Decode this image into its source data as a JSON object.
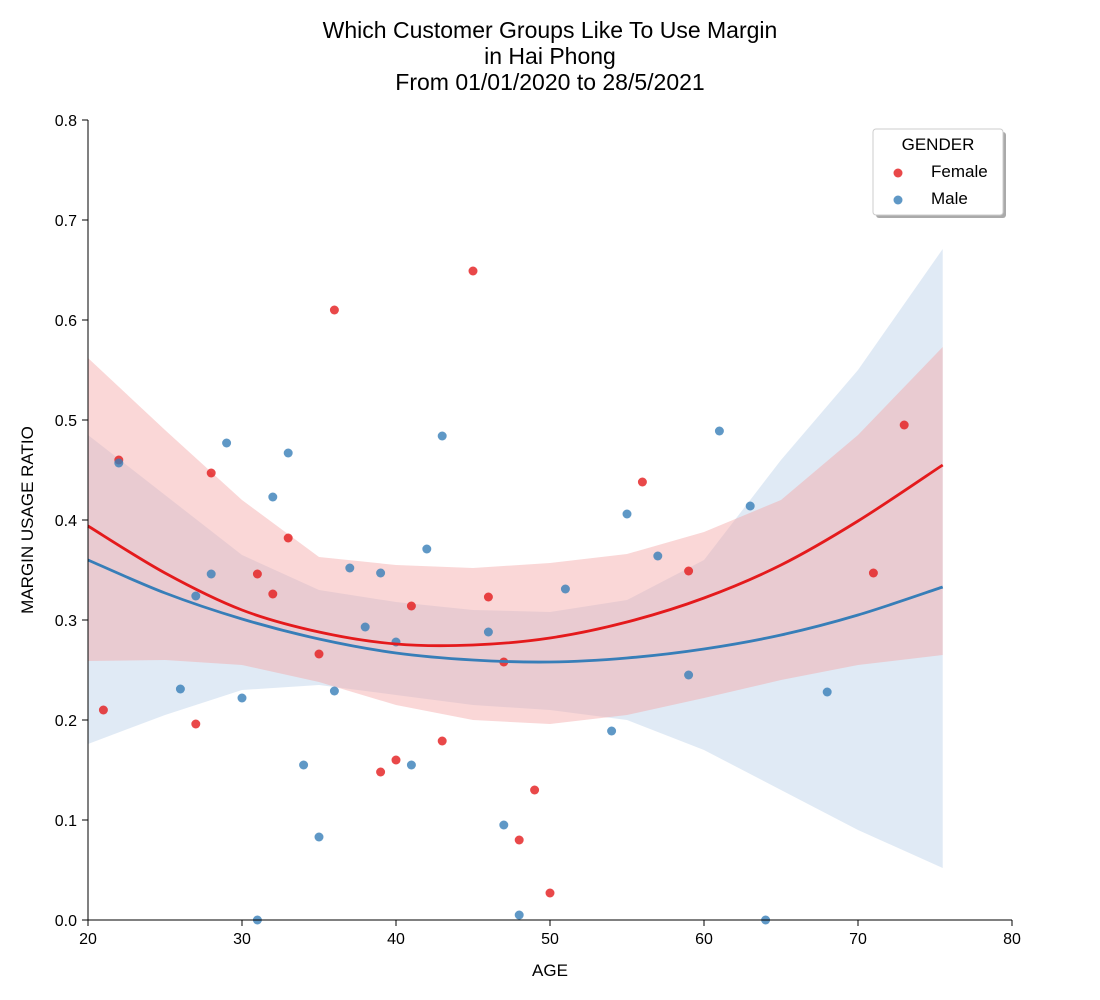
{
  "chart_data": {
    "type": "scatter",
    "title_lines": [
      "Which Customer Groups Like To Use Margin",
      "in Hai Phong",
      "From 01/01/2020 to 28/5/2021"
    ],
    "xlabel": "AGE",
    "ylabel": "MARGIN USAGE RATIO",
    "xlim": [
      20,
      80
    ],
    "ylim": [
      0,
      0.8
    ],
    "x_ticks": [
      20,
      30,
      40,
      50,
      60,
      70,
      80
    ],
    "x_tick_labels": [
      "20",
      "30",
      "40",
      "50",
      "60",
      "70",
      "80"
    ],
    "y_ticks": [
      0,
      0.1,
      0.2,
      0.3,
      0.4,
      0.5,
      0.6,
      0.7,
      0.8
    ],
    "y_tick_labels": [
      "0.0",
      "0.1",
      "0.2",
      "0.3",
      "0.4",
      "0.5",
      "0.6",
      "0.7",
      "0.8"
    ],
    "grid": false,
    "legend": {
      "title": "GENDER",
      "placement": "top-right"
    },
    "series": [
      {
        "name": "Female",
        "color": "#e41a1c",
        "band_color": "#f4a6a6",
        "points": [
          [
            21,
            0.21
          ],
          [
            22,
            0.46
          ],
          [
            27,
            0.196
          ],
          [
            28,
            0.447
          ],
          [
            31,
            0.346
          ],
          [
            32,
            0.326
          ],
          [
            33,
            0.382
          ],
          [
            35,
            0.266
          ],
          [
            36,
            0.61
          ],
          [
            39,
            0.148
          ],
          [
            40,
            0.16
          ],
          [
            41,
            0.314
          ],
          [
            43,
            0.179
          ],
          [
            45,
            0.649
          ],
          [
            46,
            0.323
          ],
          [
            47,
            0.258
          ],
          [
            48,
            0.08
          ],
          [
            49,
            0.13
          ],
          [
            50,
            0.027
          ],
          [
            56,
            0.438
          ],
          [
            59,
            0.349
          ],
          [
            71,
            0.347
          ],
          [
            73,
            0.495
          ]
        ],
        "fit": [
          [
            20,
            0.394
          ],
          [
            25,
            0.347
          ],
          [
            30,
            0.31
          ],
          [
            35,
            0.288
          ],
          [
            40,
            0.276
          ],
          [
            45,
            0.275
          ],
          [
            50,
            0.282
          ],
          [
            55,
            0.298
          ],
          [
            60,
            0.322
          ],
          [
            65,
            0.355
          ],
          [
            70,
            0.399
          ],
          [
            75.5,
            0.455
          ]
        ],
        "ci_upper": [
          [
            20,
            0.562
          ],
          [
            25,
            0.49
          ],
          [
            30,
            0.42
          ],
          [
            35,
            0.363
          ],
          [
            40,
            0.355
          ],
          [
            45,
            0.352
          ],
          [
            50,
            0.357
          ],
          [
            55,
            0.366
          ],
          [
            60,
            0.388
          ],
          [
            65,
            0.42
          ],
          [
            70,
            0.485
          ],
          [
            75.5,
            0.573
          ]
        ],
        "ci_lower": [
          [
            20,
            0.259
          ],
          [
            25,
            0.26
          ],
          [
            30,
            0.255
          ],
          [
            35,
            0.238
          ],
          [
            40,
            0.215
          ],
          [
            45,
            0.2
          ],
          [
            50,
            0.196
          ],
          [
            55,
            0.205
          ],
          [
            60,
            0.222
          ],
          [
            65,
            0.24
          ],
          [
            70,
            0.255
          ],
          [
            75.5,
            0.265
          ]
        ]
      },
      {
        "name": "Male",
        "color": "#377eb8",
        "band_color": "#c6d9ec",
        "points": [
          [
            22,
            0.457
          ],
          [
            26,
            0.231
          ],
          [
            27,
            0.324
          ],
          [
            28,
            0.346
          ],
          [
            29,
            0.477
          ],
          [
            30,
            0.222
          ],
          [
            31,
            0.0
          ],
          [
            32,
            0.423
          ],
          [
            33,
            0.467
          ],
          [
            34,
            0.155
          ],
          [
            35,
            0.083
          ],
          [
            36,
            0.229
          ],
          [
            37,
            0.352
          ],
          [
            38,
            0.293
          ],
          [
            39,
            0.347
          ],
          [
            40,
            0.278
          ],
          [
            41,
            0.155
          ],
          [
            42,
            0.371
          ],
          [
            43,
            0.484
          ],
          [
            46,
            0.288
          ],
          [
            47,
            0.095
          ],
          [
            48,
            0.005
          ],
          [
            51,
            0.331
          ],
          [
            54,
            0.189
          ],
          [
            55,
            0.406
          ],
          [
            57,
            0.364
          ],
          [
            59,
            0.245
          ],
          [
            61,
            0.489
          ],
          [
            63,
            0.414
          ],
          [
            64,
            0.0
          ],
          [
            68,
            0.228
          ]
        ],
        "fit": [
          [
            20,
            0.36
          ],
          [
            25,
            0.327
          ],
          [
            30,
            0.301
          ],
          [
            35,
            0.281
          ],
          [
            40,
            0.267
          ],
          [
            45,
            0.26
          ],
          [
            50,
            0.258
          ],
          [
            55,
            0.262
          ],
          [
            60,
            0.271
          ],
          [
            65,
            0.285
          ],
          [
            70,
            0.305
          ],
          [
            75.5,
            0.333
          ]
        ],
        "ci_upper": [
          [
            20,
            0.485
          ],
          [
            25,
            0.425
          ],
          [
            30,
            0.365
          ],
          [
            35,
            0.33
          ],
          [
            40,
            0.318
          ],
          [
            45,
            0.31
          ],
          [
            50,
            0.308
          ],
          [
            55,
            0.32
          ],
          [
            60,
            0.36
          ],
          [
            65,
            0.46
          ],
          [
            70,
            0.55
          ],
          [
            75.5,
            0.671
          ]
        ],
        "ci_lower": [
          [
            20,
            0.176
          ],
          [
            25,
            0.205
          ],
          [
            30,
            0.23
          ],
          [
            35,
            0.235
          ],
          [
            40,
            0.225
          ],
          [
            45,
            0.215
          ],
          [
            50,
            0.21
          ],
          [
            55,
            0.2
          ],
          [
            60,
            0.17
          ],
          [
            65,
            0.13
          ],
          [
            70,
            0.09
          ],
          [
            75.5,
            0.052
          ]
        ]
      }
    ]
  }
}
